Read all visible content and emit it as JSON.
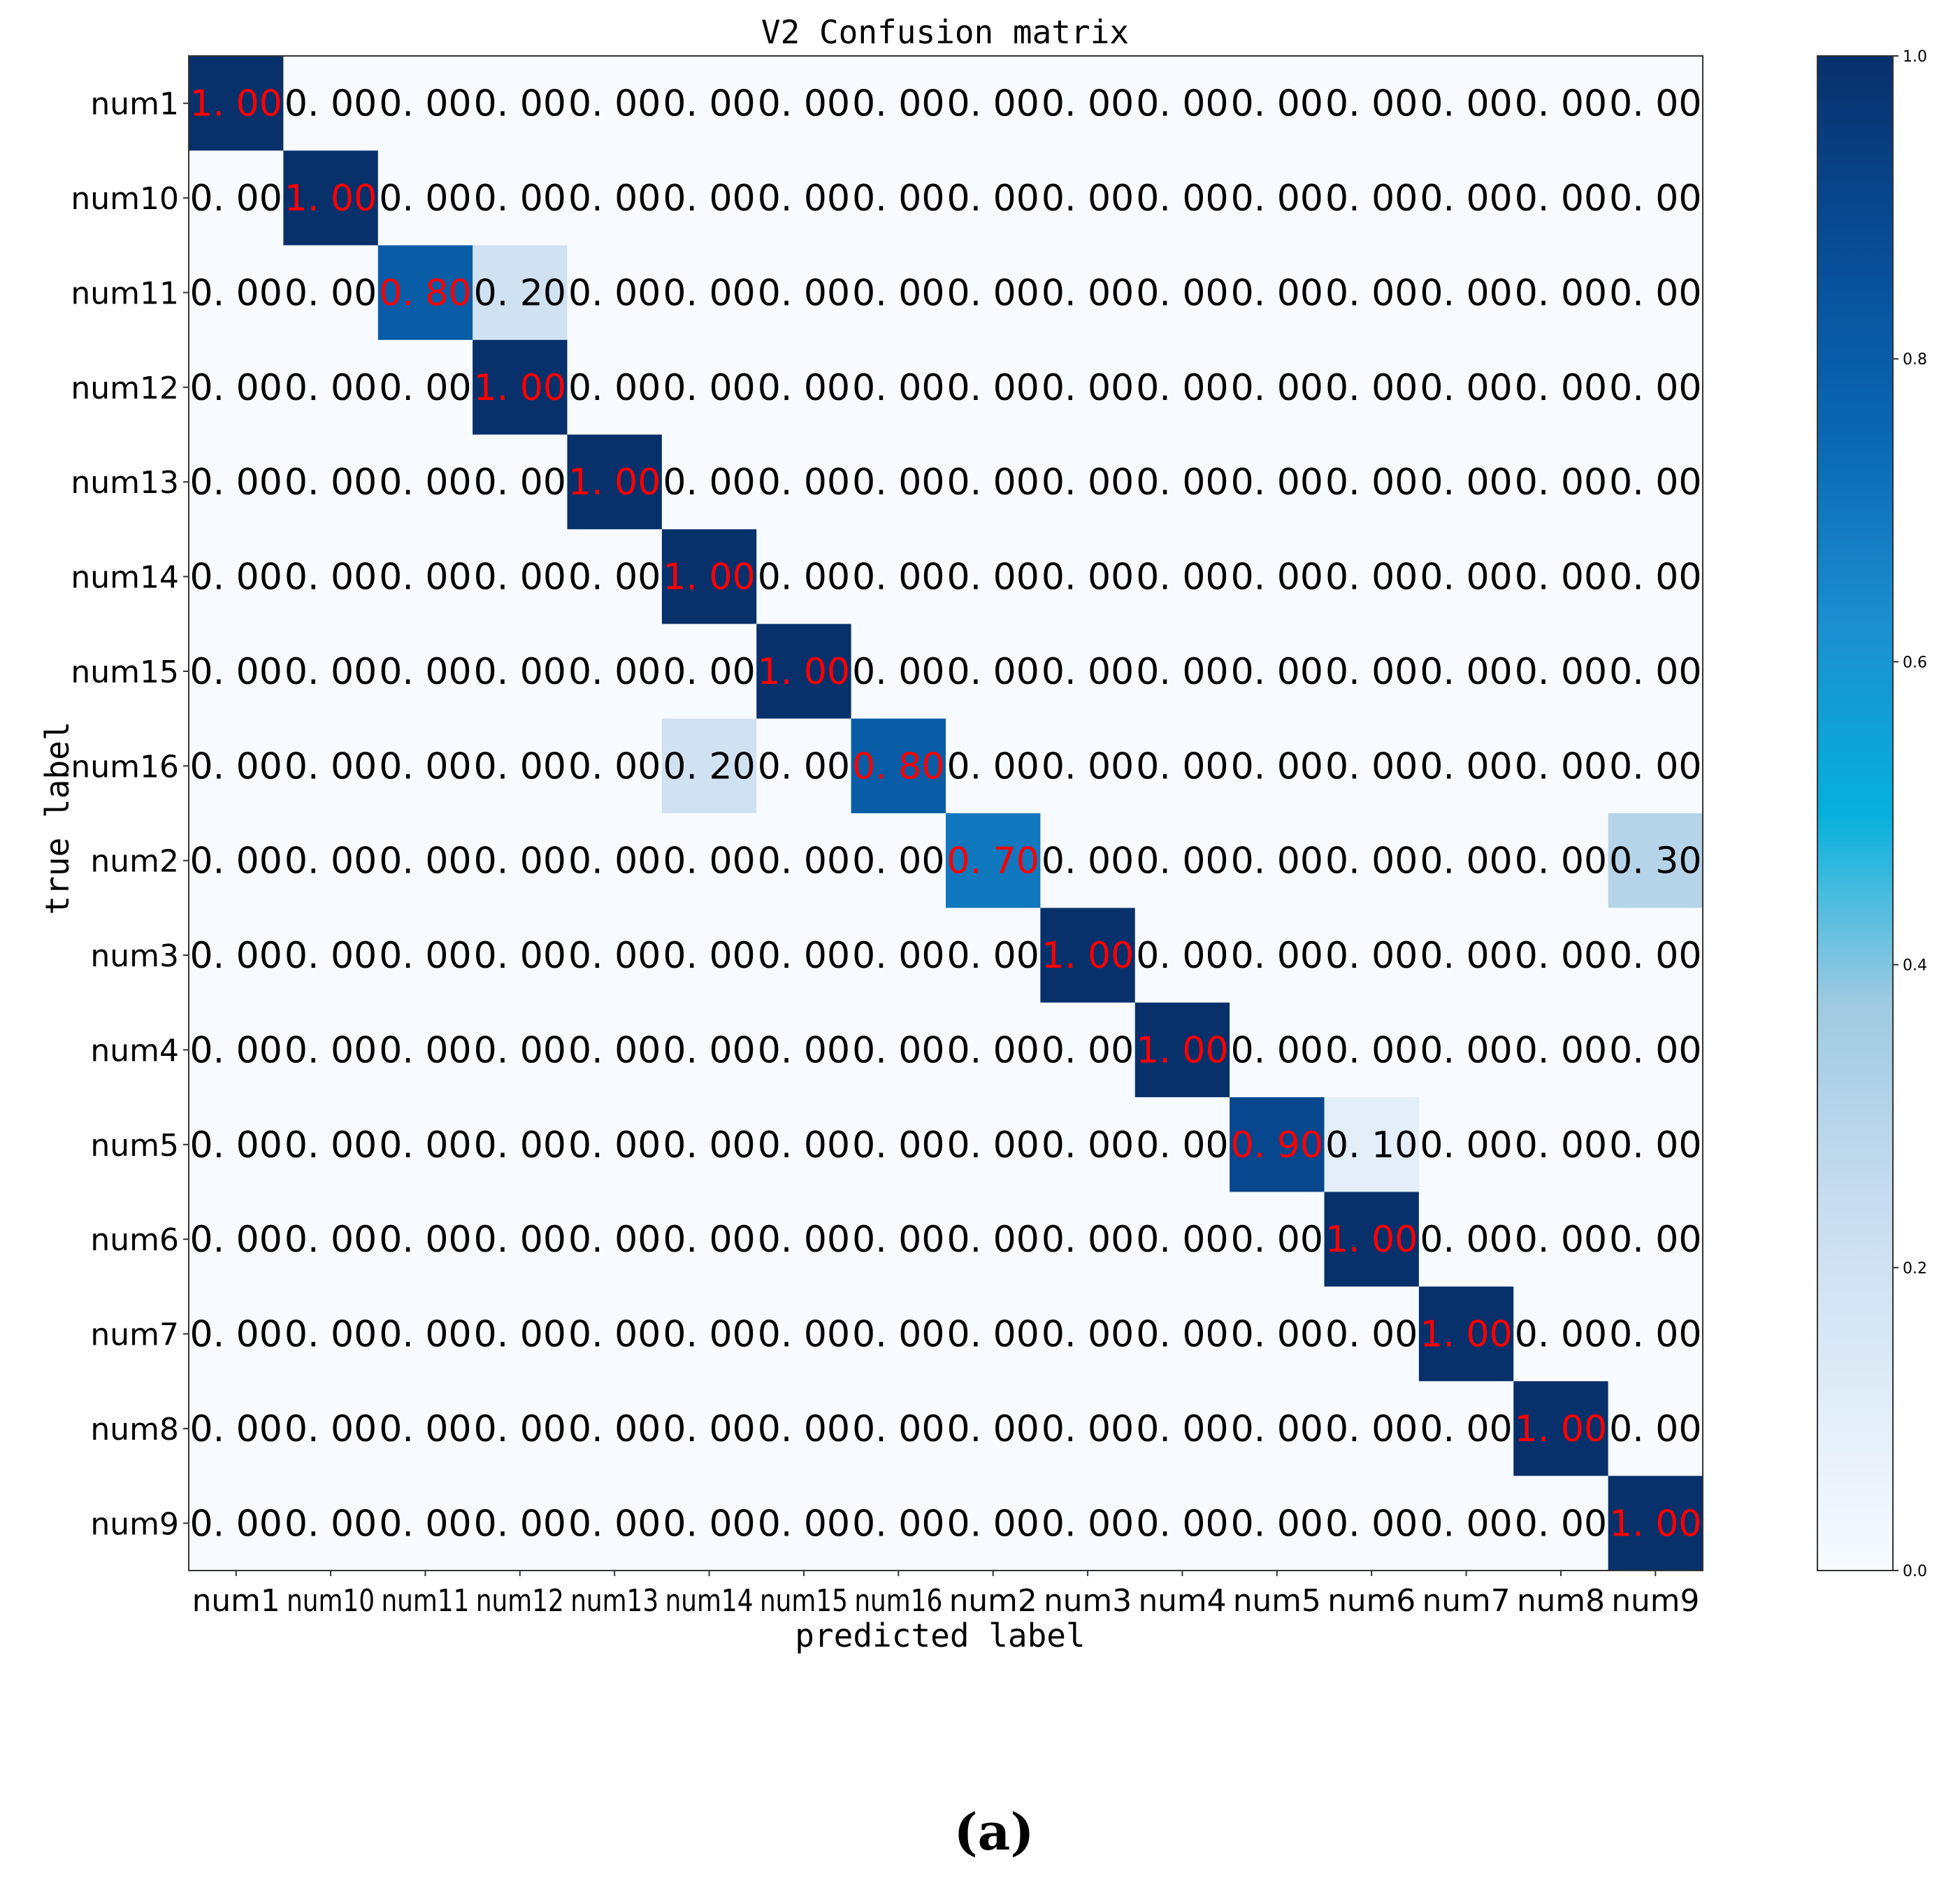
{
  "chart_data": {
    "type": "heatmap",
    "title": "V2 Confusion matrix",
    "xlabel": "predicted label",
    "ylabel": "true label",
    "x_categories": [
      "num1",
      "num10",
      "num11",
      "num12",
      "num13",
      "num14",
      "num15",
      "num16",
      "num2",
      "num3",
      "num4",
      "num5",
      "num6",
      "num7",
      "num8",
      "num9"
    ],
    "y_categories": [
      "num1",
      "num10",
      "num11",
      "num12",
      "num13",
      "num14",
      "num15",
      "num16",
      "num2",
      "num3",
      "num4",
      "num5",
      "num6",
      "num7",
      "num8",
      "num9"
    ],
    "values": [
      [
        1.0,
        0.0,
        0.0,
        0.0,
        0.0,
        0.0,
        0.0,
        0.0,
        0.0,
        0.0,
        0.0,
        0.0,
        0.0,
        0.0,
        0.0,
        0.0
      ],
      [
        0.0,
        1.0,
        0.0,
        0.0,
        0.0,
        0.0,
        0.0,
        0.0,
        0.0,
        0.0,
        0.0,
        0.0,
        0.0,
        0.0,
        0.0,
        0.0
      ],
      [
        0.0,
        0.0,
        0.8,
        0.2,
        0.0,
        0.0,
        0.0,
        0.0,
        0.0,
        0.0,
        0.0,
        0.0,
        0.0,
        0.0,
        0.0,
        0.0
      ],
      [
        0.0,
        0.0,
        0.0,
        1.0,
        0.0,
        0.0,
        0.0,
        0.0,
        0.0,
        0.0,
        0.0,
        0.0,
        0.0,
        0.0,
        0.0,
        0.0
      ],
      [
        0.0,
        0.0,
        0.0,
        0.0,
        1.0,
        0.0,
        0.0,
        0.0,
        0.0,
        0.0,
        0.0,
        0.0,
        0.0,
        0.0,
        0.0,
        0.0
      ],
      [
        0.0,
        0.0,
        0.0,
        0.0,
        0.0,
        1.0,
        0.0,
        0.0,
        0.0,
        0.0,
        0.0,
        0.0,
        0.0,
        0.0,
        0.0,
        0.0
      ],
      [
        0.0,
        0.0,
        0.0,
        0.0,
        0.0,
        0.0,
        1.0,
        0.0,
        0.0,
        0.0,
        0.0,
        0.0,
        0.0,
        0.0,
        0.0,
        0.0
      ],
      [
        0.0,
        0.0,
        0.0,
        0.0,
        0.0,
        0.2,
        0.0,
        0.8,
        0.0,
        0.0,
        0.0,
        0.0,
        0.0,
        0.0,
        0.0,
        0.0
      ],
      [
        0.0,
        0.0,
        0.0,
        0.0,
        0.0,
        0.0,
        0.0,
        0.0,
        0.7,
        0.0,
        0.0,
        0.0,
        0.0,
        0.0,
        0.0,
        0.3
      ],
      [
        0.0,
        0.0,
        0.0,
        0.0,
        0.0,
        0.0,
        0.0,
        0.0,
        0.0,
        1.0,
        0.0,
        0.0,
        0.0,
        0.0,
        0.0,
        0.0
      ],
      [
        0.0,
        0.0,
        0.0,
        0.0,
        0.0,
        0.0,
        0.0,
        0.0,
        0.0,
        0.0,
        1.0,
        0.0,
        0.0,
        0.0,
        0.0,
        0.0
      ],
      [
        0.0,
        0.0,
        0.0,
        0.0,
        0.0,
        0.0,
        0.0,
        0.0,
        0.0,
        0.0,
        0.0,
        0.9,
        0.1,
        0.0,
        0.0,
        0.0
      ],
      [
        0.0,
        0.0,
        0.0,
        0.0,
        0.0,
        0.0,
        0.0,
        0.0,
        0.0,
        0.0,
        0.0,
        0.0,
        1.0,
        0.0,
        0.0,
        0.0
      ],
      [
        0.0,
        0.0,
        0.0,
        0.0,
        0.0,
        0.0,
        0.0,
        0.0,
        0.0,
        0.0,
        0.0,
        0.0,
        0.0,
        1.0,
        0.0,
        0.0
      ],
      [
        0.0,
        0.0,
        0.0,
        0.0,
        0.0,
        0.0,
        0.0,
        0.0,
        0.0,
        0.0,
        0.0,
        0.0,
        0.0,
        0.0,
        1.0,
        0.0
      ],
      [
        0.0,
        0.0,
        0.0,
        0.0,
        0.0,
        0.0,
        0.0,
        0.0,
        0.0,
        0.0,
        0.0,
        0.0,
        0.0,
        0.0,
        0.0,
        1.0
      ]
    ],
    "colorbar": {
      "range": [
        0.0,
        1.0
      ],
      "ticks": [
        "0.0",
        "0.2",
        "0.4",
        "0.6",
        "0.8",
        "1.0"
      ]
    },
    "colormap": "Blues",
    "diagonal_label_color": "#ff0000",
    "offdiagonal_label_color": "#000000",
    "value_format": "0. 00"
  },
  "caption": "(a)"
}
